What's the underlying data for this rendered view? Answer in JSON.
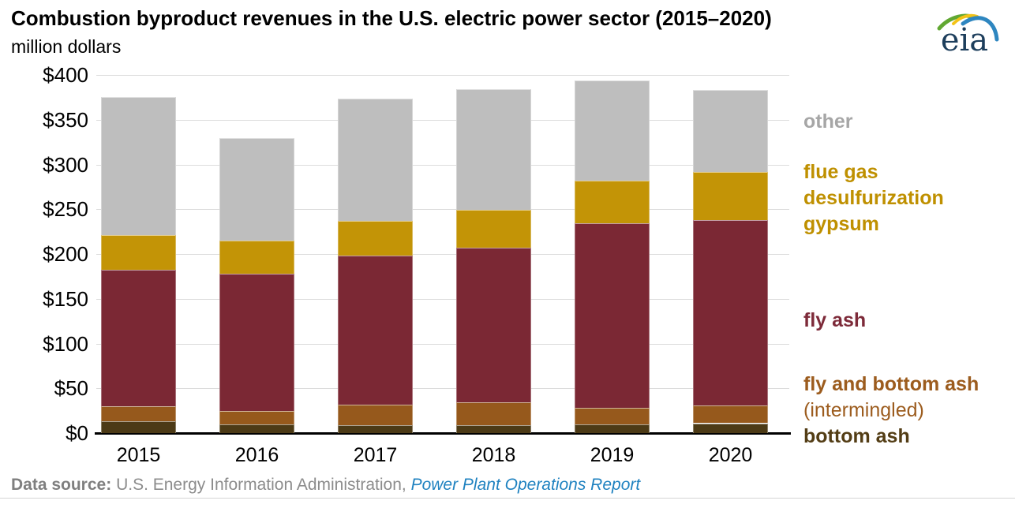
{
  "header": {
    "title": "Combustion byproduct revenues in the U.S. electric power sector (2015–2020)",
    "subtitle": "million dollars",
    "logo_text": "eia"
  },
  "chart_data": {
    "type": "bar",
    "stacked": true,
    "title": "Combustion byproduct revenues in the U.S. electric power sector (2015–2020)",
    "unit": "million dollars",
    "categories": [
      "2015",
      "2016",
      "2017",
      "2018",
      "2019",
      "2020"
    ],
    "series": [
      {
        "name": "bottom ash",
        "color": "#4c3a16",
        "values": [
          13,
          10,
          9,
          9,
          10,
          11
        ]
      },
      {
        "name": "fly and bottom ash (intermingled)",
        "color": "#96591c",
        "values": [
          17,
          15,
          23,
          25,
          18,
          20
        ]
      },
      {
        "name": "fly ash",
        "color": "#7b2834",
        "values": [
          152,
          153,
          166,
          173,
          206,
          207
        ]
      },
      {
        "name": "flue gas desulfurization gypsum",
        "color": "#c39406",
        "values": [
          39,
          37,
          39,
          42,
          48,
          54
        ]
      },
      {
        "name": "other",
        "color": "#bebebe",
        "values": [
          154,
          115,
          137,
          135,
          112,
          91
        ]
      }
    ],
    "totals": [
      375,
      330,
      374,
      384,
      394,
      383
    ],
    "xlabel": "",
    "ylabel": "million dollars",
    "ylim": [
      0,
      400
    ],
    "ytick_step": 50,
    "ytick_labels": [
      "$0",
      "$50",
      "$100",
      "$150",
      "$200",
      "$250",
      "$300",
      "$350",
      "$400"
    ],
    "grid": true,
    "legend_position": "right",
    "legend_items": [
      {
        "lines": [
          {
            "text": "other",
            "bold": true
          }
        ],
        "color": "#a6a6a6"
      },
      {
        "lines": [
          {
            "text": "flue gas",
            "bold": true
          },
          {
            "text": "desulfurization",
            "bold": true
          },
          {
            "text": "gypsum",
            "bold": true
          }
        ],
        "color": "#bf9000"
      },
      {
        "lines": [
          {
            "text": "fly ash",
            "bold": true
          }
        ],
        "color": "#7d2a39"
      },
      {
        "lines": [
          {
            "text": "fly and bottom ash",
            "bold": true
          },
          {
            "text": "(intermingled)",
            "bold": false
          }
        ],
        "color": "#9c5c1e"
      },
      {
        "lines": [
          {
            "text": "bottom ash",
            "bold": true
          }
        ],
        "color": "#533d15"
      }
    ]
  },
  "footer": {
    "label": "Data source:",
    "text": "U.S. Energy Information Administration,",
    "report": "Power Plant Operations Report"
  },
  "logo_colors": {
    "text": "#1d3e5c",
    "arc_green": "#61a832",
    "arc_yellow": "#f3c317",
    "arc_blue": "#2e86c0"
  }
}
